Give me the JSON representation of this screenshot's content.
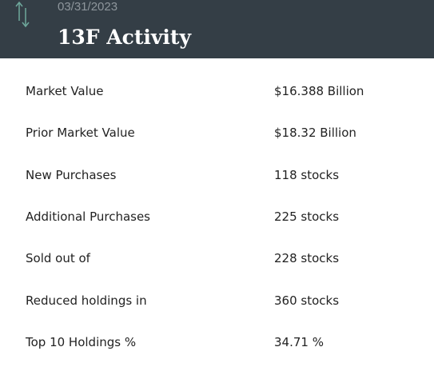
{
  "header": {
    "date": "03/31/2023",
    "title": "13F Activity"
  },
  "table": {
    "rows": [
      [
        "Market Value",
        "$16.388 Billion"
      ],
      [
        "Prior Market Value",
        "$18.32 Billion"
      ],
      [
        "New Purchases",
        "118 stocks"
      ],
      [
        "Additional Purchases",
        "225 stocks"
      ],
      [
        "Sold out of",
        "228 stocks"
      ],
      [
        "Reduced holdings in",
        "360 stocks"
      ],
      [
        "Top 10 Holdings %",
        "34.71 %"
      ]
    ]
  }
}
